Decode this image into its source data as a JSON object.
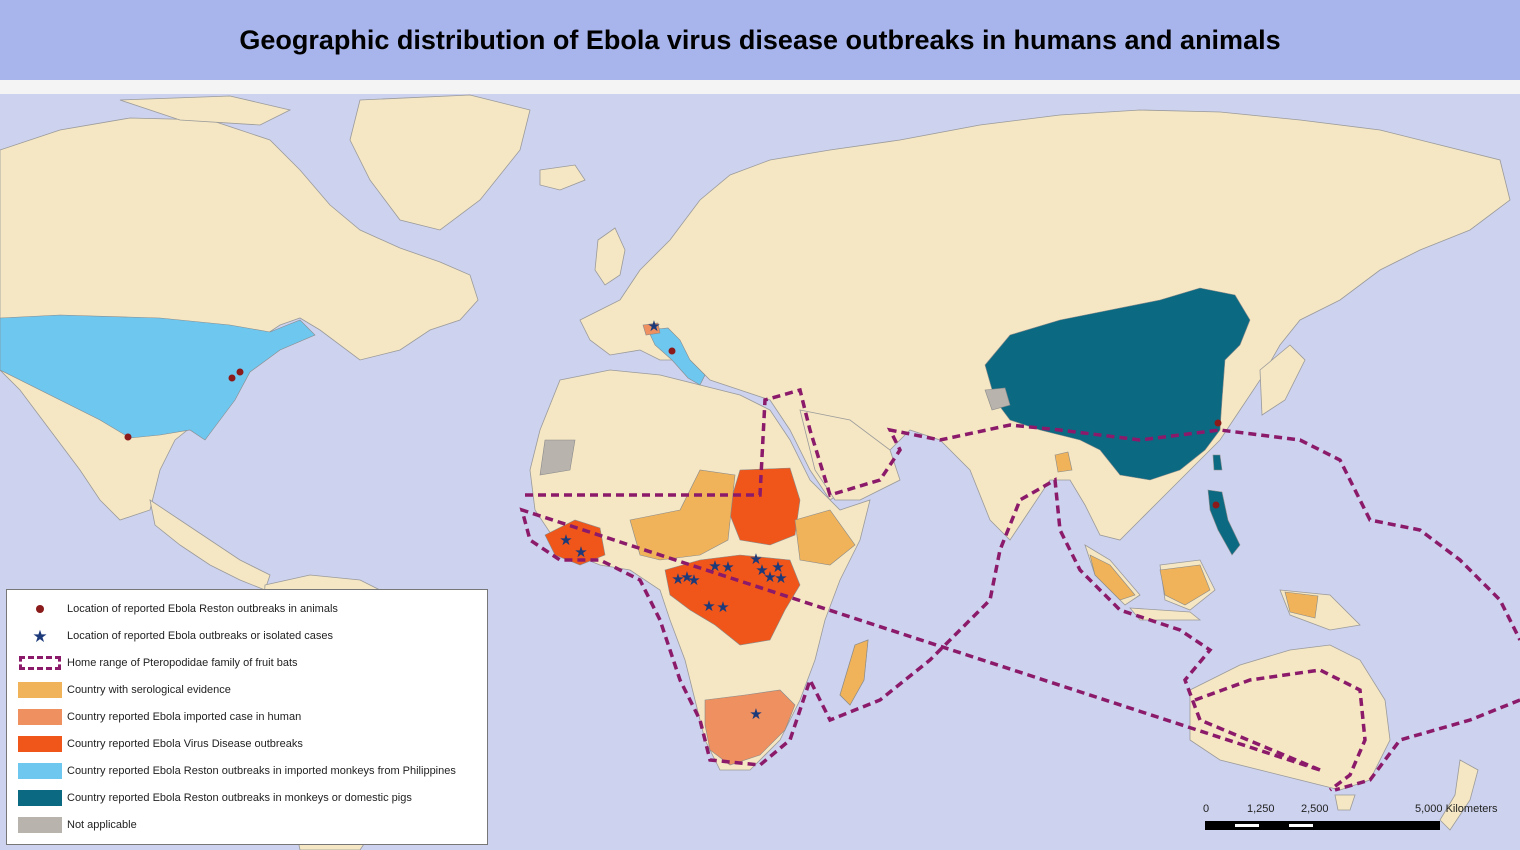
{
  "title": "Geographic distribution of Ebola virus disease outbreaks in humans and animals",
  "colors": {
    "ocean": "#cdd2ee",
    "land": "#f5e7c4",
    "border": "#9a9a9a",
    "serological": "#f0b35a",
    "imported_case": "#ee9060",
    "evd_outbreak": "#f0561a",
    "reston_imported_monkeys": "#6ec7ef",
    "reston_monkeys_pigs": "#0b6a82",
    "not_applicable": "#b9b3ad",
    "bat_range": "#8b1a6a",
    "animal_outbreak_dot": "#8b1a1a",
    "outbreak_star": "#1c3a7a"
  },
  "legend": {
    "items": [
      {
        "symbol": "dot-icon",
        "label": "Location of reported Ebola Reston outbreaks in animals"
      },
      {
        "symbol": "star-icon",
        "label": "Location of reported Ebola outbreaks or isolated cases"
      },
      {
        "symbol": "dashed-range-icon",
        "label": "Home range of Pteropodidae family of  fruit bats"
      },
      {
        "symbol": "swatch",
        "color": "#f0b35a",
        "label": "Country with serological evidence"
      },
      {
        "symbol": "swatch",
        "color": "#ee9060",
        "label": "Country reported Ebola imported case in human"
      },
      {
        "symbol": "swatch",
        "color": "#f0561a",
        "label": "Country reported Ebola Virus Disease outbreaks"
      },
      {
        "symbol": "swatch",
        "color": "#6ec7ef",
        "label": "Country reported Ebola Reston outbreaks in imported monkeys from Philippines"
      },
      {
        "symbol": "swatch",
        "color": "#0b6a82",
        "label": "Country reported Ebola Reston outbreaks in monkeys or domestic pigs"
      },
      {
        "symbol": "swatch",
        "color": "#b9b3ad",
        "label": "Not applicable"
      }
    ]
  },
  "scale_bar": {
    "ticks": [
      "0",
      "1,250",
      "2,500",
      "5,000 Kilometers"
    ]
  }
}
